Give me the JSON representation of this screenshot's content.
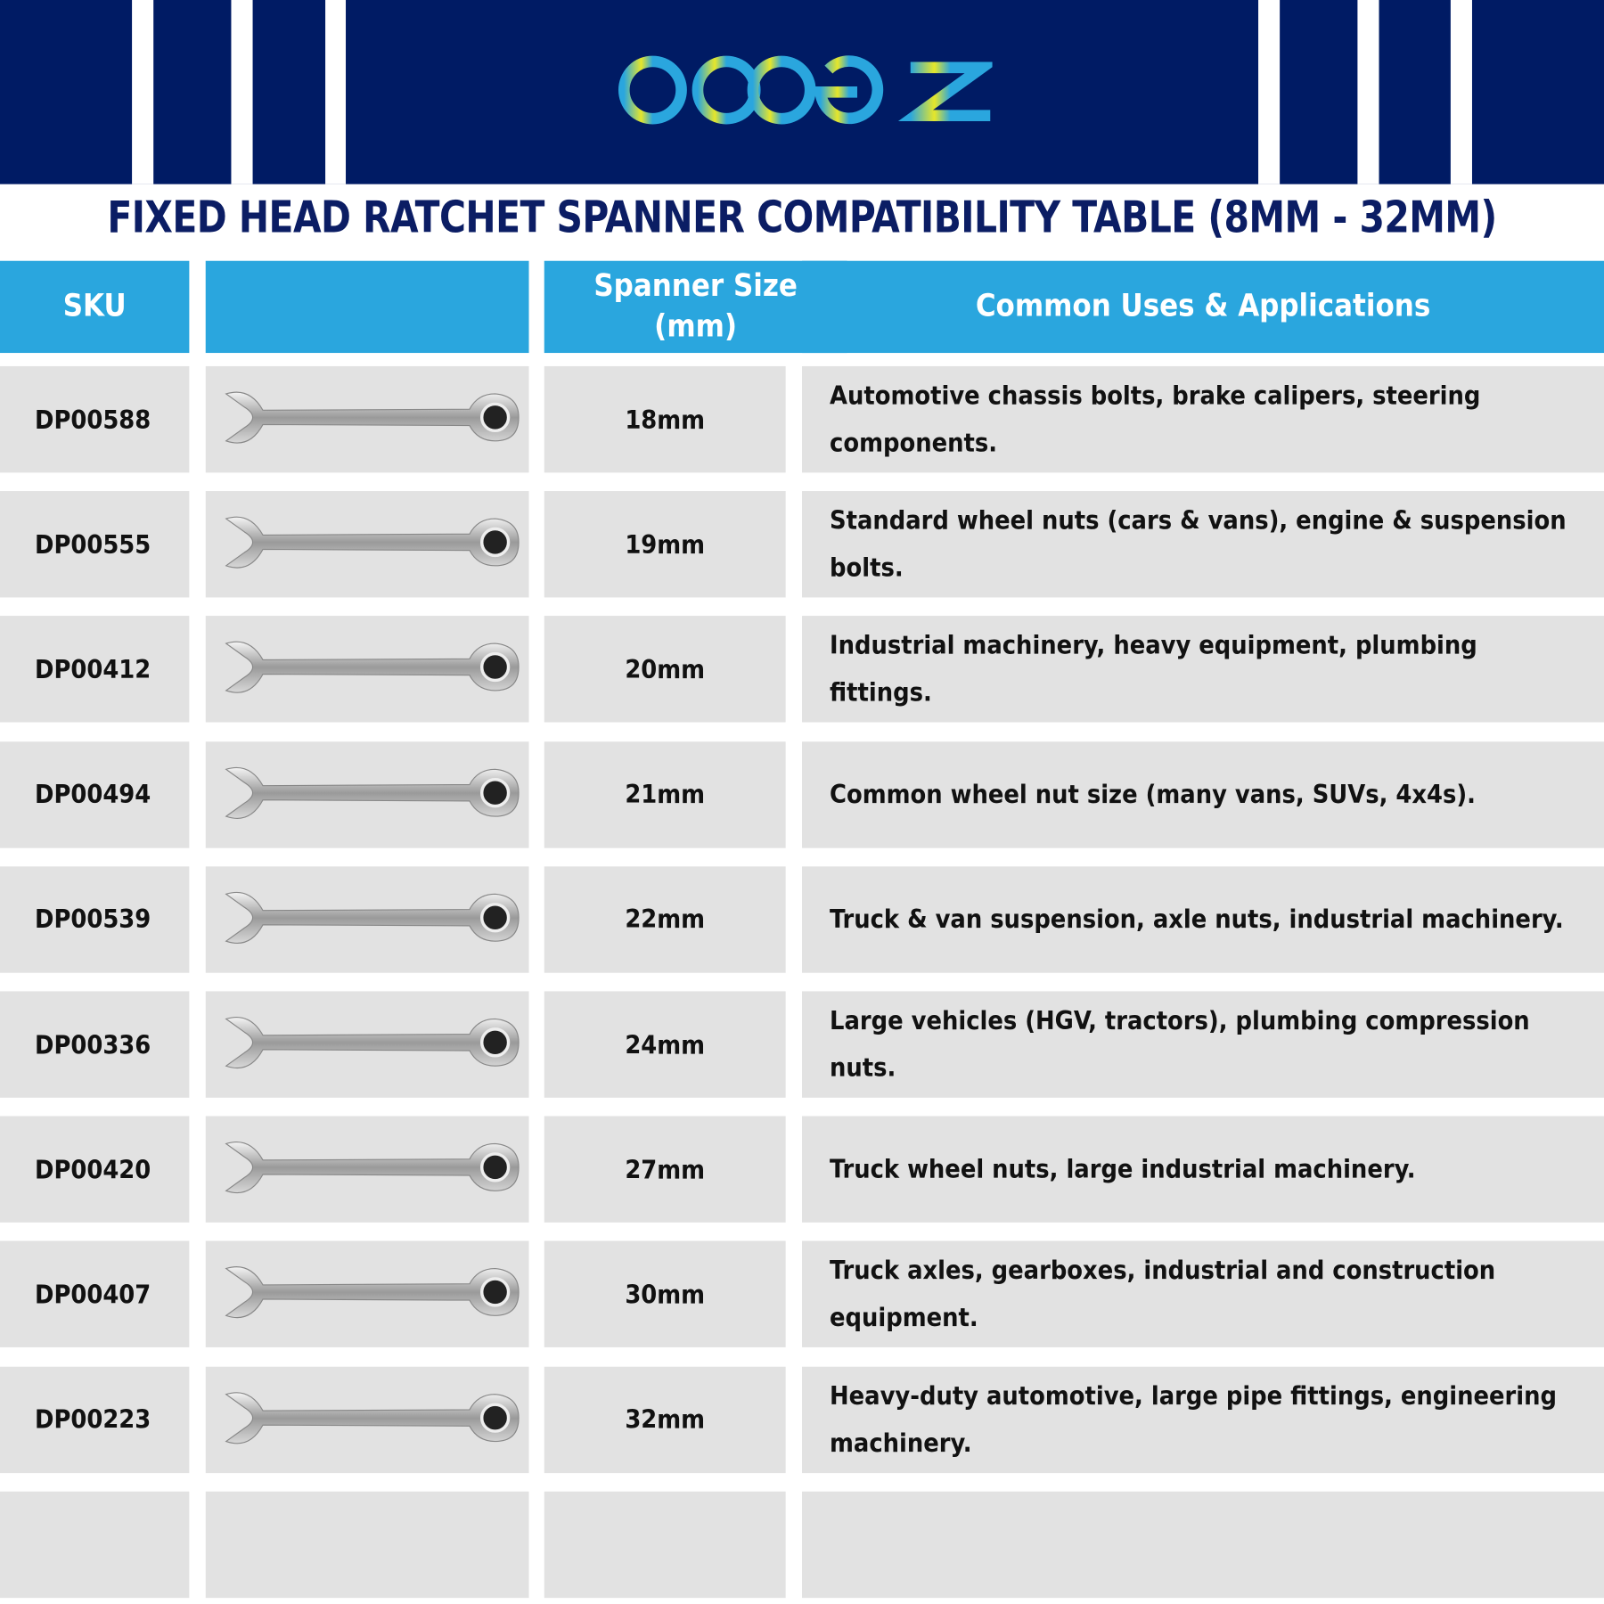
{
  "brand": {
    "logo_text": "dopetz",
    "colors": {
      "navy": "#001b64",
      "accent": "#2aa6de",
      "row": "#e2e2e2"
    }
  },
  "title": "FIXED HEAD RATCHET SPANNER COMPATIBILITY TABLE (8MM - 32MM)",
  "table": {
    "headers": [
      "SKU",
      "",
      "Spanner Size (mm)",
      "Common Uses & Applications"
    ],
    "rows": [
      {
        "sku": "DP00588",
        "size": "18mm",
        "uses": "Automotive chassis bolts, brake calipers, steering components.",
        "image": "ratchet-spanner-icon"
      },
      {
        "sku": "DP00555",
        "size": "19mm",
        "uses": "Standard wheel nuts (cars & vans), engine & suspension bolts.",
        "image": "ratchet-spanner-icon"
      },
      {
        "sku": "DP00412",
        "size": "20mm",
        "uses": "Industrial machinery, heavy equipment, plumbing fittings.",
        "image": "ratchet-spanner-icon"
      },
      {
        "sku": "DP00494",
        "size": "21mm",
        "uses": "Common wheel nut size (many vans, SUVs, 4x4s).",
        "image": "ratchet-spanner-icon"
      },
      {
        "sku": "DP00539",
        "size": "22mm",
        "uses": "Truck & van suspension, axle nuts, industrial machinery.",
        "image": "ratchet-spanner-icon"
      },
      {
        "sku": "DP00336",
        "size": "24mm",
        "uses": "Large vehicles (HGV, tractors), plumbing compression nuts.",
        "image": "ratchet-spanner-icon"
      },
      {
        "sku": "DP00420",
        "size": "27mm",
        "uses": "Truck wheel nuts, large industrial machinery.",
        "image": "ratchet-spanner-icon"
      },
      {
        "sku": "DP00407",
        "size": "30mm",
        "uses": "Truck axles, gearboxes, industrial and construction equipment.",
        "image": "ratchet-spanner-icon"
      },
      {
        "sku": "DP00223",
        "size": "32mm",
        "uses": "Heavy-duty automotive, large pipe fittings, engineering machinery.",
        "image": "ratchet-spanner-icon"
      }
    ]
  }
}
